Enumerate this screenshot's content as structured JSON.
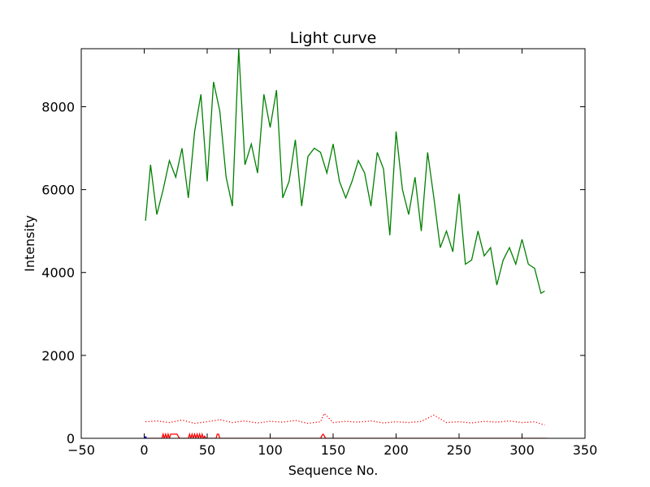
{
  "chart_data": {
    "type": "line",
    "title": "Light curve",
    "xlabel": "Sequence No.",
    "ylabel": "Intensity",
    "xlim": [
      -50,
      350
    ],
    "ylim": [
      0,
      9400
    ],
    "xticks": [
      -50,
      0,
      50,
      100,
      150,
      200,
      250,
      300,
      350
    ],
    "yticks": [
      0,
      2000,
      4000,
      6000,
      8000
    ],
    "grid": false,
    "legend": "none",
    "series": [
      {
        "color": "#008000",
        "style": "solid",
        "x": [
          1,
          5,
          10,
          15,
          20,
          25,
          30,
          35,
          40,
          45,
          50,
          55,
          60,
          65,
          70,
          75,
          80,
          85,
          90,
          95,
          100,
          105,
          110,
          115,
          120,
          125,
          130,
          135,
          140,
          145,
          150,
          155,
          160,
          165,
          170,
          175,
          180,
          185,
          190,
          195,
          200,
          205,
          210,
          215,
          220,
          225,
          230,
          235,
          240,
          245,
          250,
          255,
          260,
          265,
          270,
          275,
          280,
          285,
          290,
          295,
          300,
          305,
          310,
          315,
          318
        ],
        "y": [
          5250,
          6600,
          5400,
          6000,
          6700,
          6300,
          7000,
          5800,
          7400,
          8300,
          6200,
          8600,
          7900,
          6300,
          5600,
          9400,
          6600,
          7100,
          6400,
          8300,
          7500,
          8400,
          5800,
          6200,
          7200,
          5600,
          6800,
          7000,
          6900,
          6400,
          7100,
          6200,
          5800,
          6200,
          6700,
          6400,
          5600,
          6900,
          6500,
          4900,
          7400,
          6000,
          5400,
          6300,
          5000,
          6900,
          5800,
          4600,
          5000,
          4500,
          5900,
          4200,
          4300,
          5000,
          4400,
          4600,
          3700,
          4300,
          4600,
          4200,
          4800,
          4200,
          4100,
          3500,
          3550
        ]
      },
      {
        "color": "#ff0000",
        "style": "dotted",
        "x": [
          1,
          10,
          20,
          30,
          40,
          50,
          60,
          70,
          80,
          90,
          100,
          110,
          120,
          130,
          140,
          143,
          150,
          160,
          170,
          180,
          190,
          200,
          210,
          220,
          230,
          240,
          250,
          260,
          270,
          280,
          290,
          300,
          310,
          318
        ],
        "y": [
          400,
          420,
          380,
          440,
          360,
          400,
          450,
          380,
          420,
          370,
          410,
          390,
          430,
          360,
          400,
          600,
          380,
          410,
          390,
          420,
          370,
          400,
          380,
          410,
          560,
          380,
          400,
          370,
          410,
          390,
          420,
          380,
          400,
          320
        ]
      },
      {
        "color": "#ff0000",
        "style": "solid",
        "x": [
          0,
          14,
          15,
          16,
          17,
          18,
          19,
          20,
          21,
          22,
          23,
          24,
          26,
          28,
          29,
          30,
          35,
          36,
          37,
          38,
          39,
          40,
          41,
          42,
          43,
          44,
          45,
          46,
          47,
          48,
          49,
          57,
          58,
          59,
          60,
          61,
          140,
          141,
          142,
          143,
          144,
          320
        ],
        "y": [
          0,
          0,
          100,
          0,
          100,
          0,
          100,
          0,
          100,
          100,
          100,
          100,
          100,
          0,
          0,
          0,
          0,
          100,
          0,
          100,
          0,
          100,
          0,
          100,
          0,
          100,
          0,
          100,
          0,
          50,
          0,
          0,
          100,
          100,
          0,
          0,
          0,
          60,
          100,
          60,
          0,
          0
        ]
      },
      {
        "color": "#0000ff",
        "style": "solid",
        "x": [
          0,
          1,
          2
        ],
        "y": [
          0,
          40,
          0
        ]
      }
    ]
  }
}
